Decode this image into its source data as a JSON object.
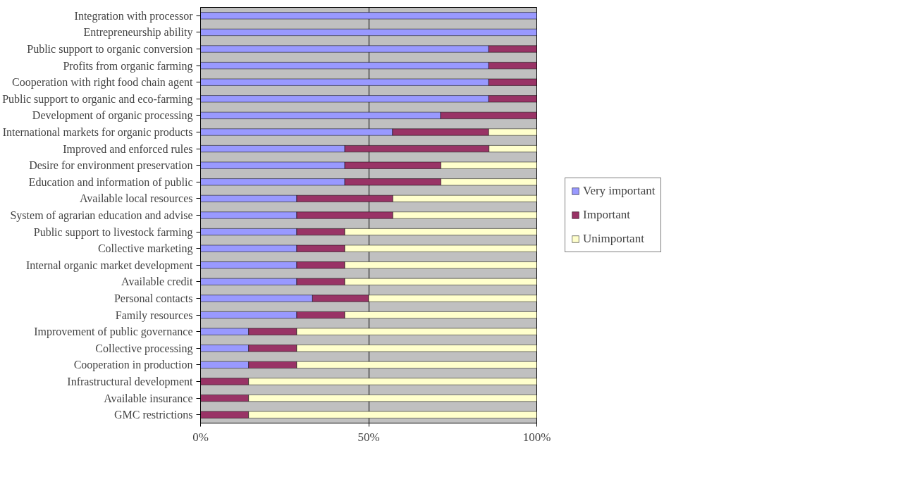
{
  "chart_data": {
    "type": "bar",
    "orientation": "horizontal",
    "stacked": true,
    "categories": [
      "Integration with processor",
      "Entrepreneurship ability",
      "Public support to organic conversion",
      "Profits from organic farming",
      "Cooperation with right food chain agent",
      "Public support to organic and eco-farming",
      "Development of organic processing",
      "International markets for organic products",
      "Improved and enforced rules",
      "Desire for environment preservation",
      "Education and information of public",
      "Available local resources",
      "System of agrarian education and advise",
      "Public support to livestock farming",
      "Collective marketing",
      "Internal organic market development",
      "Available credit",
      "Personal contacts",
      "Family resources",
      "Improvement of public governance",
      "Collective processing",
      "Cooperation in production",
      "Infrastructural development",
      "Available insurance",
      "GMC restrictions"
    ],
    "series": [
      {
        "name": "Very important",
        "color": "#9999ff",
        "values": [
          100,
          100,
          85.7,
          85.7,
          85.7,
          85.7,
          71.4,
          57.1,
          42.9,
          42.9,
          42.9,
          28.6,
          28.6,
          28.6,
          28.6,
          28.6,
          28.6,
          33.3,
          28.6,
          14.3,
          14.3,
          14.3,
          0,
          0,
          0
        ]
      },
      {
        "name": "Important",
        "color": "#993366",
        "values": [
          0,
          0,
          14.3,
          14.3,
          14.3,
          14.3,
          28.6,
          28.6,
          42.9,
          28.6,
          28.6,
          28.6,
          28.6,
          14.3,
          14.3,
          14.3,
          14.3,
          16.7,
          14.3,
          14.3,
          14.3,
          14.3,
          14.3,
          14.3,
          14.3
        ]
      },
      {
        "name": "Unimportant",
        "color": "#ffffcc",
        "values": [
          0,
          0,
          0,
          0,
          0,
          0,
          0,
          14.3,
          14.2,
          28.5,
          28.5,
          42.8,
          42.8,
          57.1,
          57.1,
          57.1,
          57.1,
          50,
          57.1,
          71.4,
          71.4,
          71.4,
          85.7,
          85.7,
          85.7
        ]
      }
    ],
    "xlim": [
      0,
      100
    ],
    "xticks": [
      {
        "value": 0,
        "label": "0%"
      },
      {
        "value": 50,
        "label": "50%"
      },
      {
        "value": 100,
        "label": "100%"
      }
    ],
    "grid": "x",
    "legend": "right"
  }
}
